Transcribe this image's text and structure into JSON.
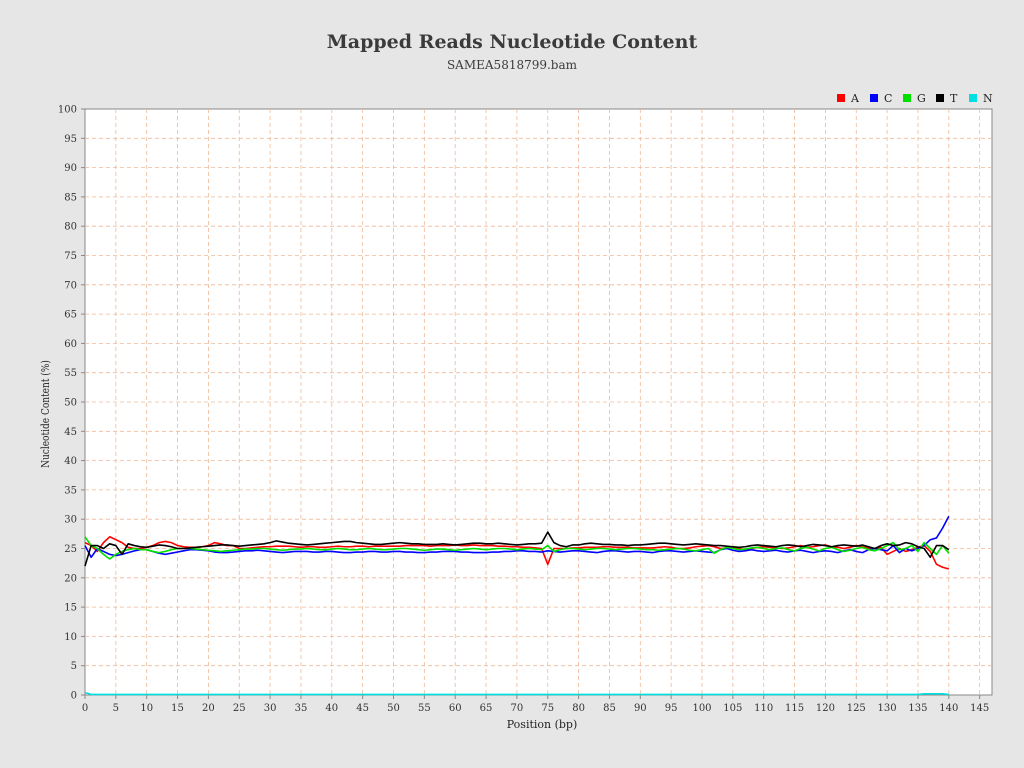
{
  "chart_data": {
    "type": "line",
    "title": "Mapped Reads Nucleotide Content",
    "subtitle": "SAMEA5818799.bam",
    "xlabel": "Position (bp)",
    "ylabel": "Nucleotide Content (%)",
    "xlim": [
      0,
      147
    ],
    "ylim": [
      0,
      100
    ],
    "xticks": [
      0,
      5,
      10,
      15,
      20,
      25,
      30,
      35,
      40,
      45,
      50,
      55,
      60,
      65,
      70,
      75,
      80,
      85,
      90,
      95,
      100,
      105,
      110,
      115,
      120,
      125,
      130,
      135,
      140,
      145
    ],
    "yticks": [
      0,
      5,
      10,
      15,
      20,
      25,
      30,
      35,
      40,
      45,
      50,
      55,
      60,
      65,
      70,
      75,
      80,
      85,
      90,
      95,
      100
    ],
    "x": [
      0,
      1,
      2,
      3,
      4,
      5,
      6,
      7,
      8,
      9,
      10,
      11,
      12,
      13,
      14,
      15,
      16,
      17,
      18,
      19,
      20,
      21,
      22,
      23,
      24,
      25,
      26,
      27,
      28,
      29,
      30,
      31,
      32,
      33,
      34,
      35,
      36,
      37,
      38,
      39,
      40,
      41,
      42,
      43,
      44,
      45,
      46,
      47,
      48,
      49,
      50,
      51,
      52,
      53,
      54,
      55,
      56,
      57,
      58,
      59,
      60,
      61,
      62,
      63,
      64,
      65,
      66,
      67,
      68,
      69,
      70,
      71,
      72,
      73,
      74,
      75,
      76,
      77,
      78,
      79,
      80,
      81,
      82,
      83,
      84,
      85,
      86,
      87,
      88,
      89,
      90,
      91,
      92,
      93,
      94,
      95,
      96,
      97,
      98,
      99,
      100,
      101,
      102,
      103,
      104,
      105,
      106,
      107,
      108,
      109,
      110,
      111,
      112,
      113,
      114,
      115,
      116,
      117,
      118,
      119,
      120,
      121,
      122,
      123,
      124,
      125,
      126,
      127,
      128,
      129,
      130,
      131,
      132,
      133,
      134,
      135,
      136,
      137,
      138,
      139,
      140
    ],
    "series": [
      {
        "name": "A",
        "color": "#ff0000",
        "values": [
          26.0,
          25.5,
          24.5,
          26.0,
          27.0,
          26.5,
          26.0,
          25.2,
          25.0,
          25.0,
          25.2,
          25.5,
          26.0,
          26.2,
          26.0,
          25.5,
          25.3,
          25.2,
          25.2,
          25.3,
          25.5,
          26.0,
          25.8,
          25.5,
          25.5,
          25.0,
          25.0,
          25.1,
          25.2,
          25.3,
          25.3,
          25.4,
          25.4,
          25.4,
          25.3,
          25.2,
          25.3,
          25.3,
          25.2,
          25.2,
          25.3,
          25.4,
          25.3,
          25.3,
          25.4,
          25.4,
          25.3,
          25.4,
          25.4,
          25.4,
          25.4,
          25.4,
          25.5,
          25.5,
          25.5,
          25.5,
          25.4,
          25.5,
          25.5,
          25.5,
          25.6,
          25.5,
          25.5,
          25.6,
          25.5,
          25.5,
          25.5,
          25.4,
          25.4,
          25.3,
          25.3,
          25.2,
          25.2,
          25.1,
          25.0,
          22.3,
          25.0,
          25.0,
          25.0,
          25.1,
          25.1,
          25.2,
          25.2,
          25.2,
          25.3,
          25.3,
          25.2,
          25.2,
          25.2,
          25.1,
          25.1,
          25.1,
          25.1,
          25.2,
          25.3,
          25.2,
          25.0,
          25.0,
          25.1,
          25.3,
          25.4,
          25.5,
          25.3,
          25.0,
          25.1,
          25.2,
          25.0,
          24.8,
          25.0,
          25.2,
          25.3,
          25.2,
          25.1,
          25.0,
          25.1,
          25.3,
          25.5,
          25.2,
          25.3,
          25.5,
          25.6,
          25.3,
          25.2,
          25.0,
          25.2,
          25.5,
          25.3,
          25.1,
          25.0,
          25.2,
          24.0,
          24.5,
          25.0,
          24.5,
          24.8,
          25.2,
          25.5,
          24.5,
          22.3,
          21.8,
          21.5
        ]
      },
      {
        "name": "C",
        "color": "#0000ff",
        "values": [
          25.5,
          23.5,
          25.0,
          24.5,
          24.0,
          23.8,
          24.0,
          24.3,
          24.6,
          24.8,
          24.8,
          24.5,
          24.2,
          24.0,
          24.2,
          24.4,
          24.6,
          24.8,
          24.8,
          24.7,
          24.6,
          24.4,
          24.3,
          24.3,
          24.4,
          24.5,
          24.6,
          24.6,
          24.7,
          24.6,
          24.5,
          24.4,
          24.3,
          24.4,
          24.5,
          24.5,
          24.5,
          24.4,
          24.4,
          24.5,
          24.5,
          24.4,
          24.3,
          24.3,
          24.4,
          24.4,
          24.5,
          24.5,
          24.4,
          24.4,
          24.5,
          24.5,
          24.4,
          24.4,
          24.3,
          24.3,
          24.4,
          24.4,
          24.5,
          24.5,
          24.5,
          24.4,
          24.4,
          24.3,
          24.3,
          24.3,
          24.4,
          24.4,
          24.5,
          24.5,
          24.6,
          24.6,
          24.5,
          24.5,
          24.4,
          24.6,
          24.5,
          24.4,
          24.5,
          24.6,
          24.6,
          24.5,
          24.4,
          24.3,
          24.5,
          24.6,
          24.6,
          24.5,
          24.4,
          24.5,
          24.5,
          24.4,
          24.3,
          24.5,
          24.6,
          24.6,
          24.5,
          24.4,
          24.5,
          24.6,
          24.5,
          24.4,
          24.3,
          24.8,
          25.0,
          24.7,
          24.5,
          24.6,
          24.8,
          24.6,
          24.5,
          24.6,
          24.7,
          24.5,
          24.4,
          24.6,
          24.7,
          24.5,
          24.3,
          24.5,
          24.6,
          24.5,
          24.3,
          24.6,
          24.8,
          24.5,
          24.3,
          24.8,
          25.0,
          24.8,
          24.6,
          25.5,
          24.3,
          25.0,
          24.6,
          25.0,
          25.5,
          26.5,
          26.8,
          28.5,
          30.5
        ]
      },
      {
        "name": "G",
        "color": "#00e000",
        "values": [
          27.0,
          25.5,
          25.0,
          24.0,
          23.2,
          24.0,
          24.5,
          24.8,
          25.0,
          24.8,
          24.8,
          24.5,
          24.3,
          24.5,
          24.8,
          25.0,
          25.0,
          25.0,
          24.9,
          24.8,
          24.7,
          24.6,
          24.5,
          24.6,
          24.7,
          24.8,
          24.9,
          24.9,
          25.0,
          25.0,
          24.9,
          24.8,
          24.7,
          24.8,
          24.9,
          24.9,
          25.0,
          24.9,
          24.8,
          24.8,
          24.9,
          25.0,
          24.9,
          24.8,
          24.8,
          24.9,
          25.0,
          24.9,
          24.8,
          24.8,
          24.9,
          25.0,
          25.0,
          24.9,
          24.8,
          24.7,
          24.8,
          24.9,
          24.9,
          24.8,
          24.7,
          24.8,
          24.9,
          25.0,
          24.9,
          24.8,
          24.9,
          25.0,
          25.0,
          24.9,
          24.8,
          24.9,
          25.0,
          24.9,
          24.8,
          25.5,
          24.5,
          24.8,
          25.0,
          25.0,
          24.9,
          24.8,
          24.9,
          25.0,
          25.0,
          24.9,
          24.8,
          24.9,
          25.0,
          25.0,
          24.9,
          24.8,
          24.8,
          24.7,
          24.8,
          24.9,
          25.0,
          24.9,
          24.7,
          24.6,
          24.8,
          25.0,
          24.2,
          24.8,
          25.2,
          25.0,
          24.8,
          24.9,
          25.1,
          25.2,
          25.0,
          24.8,
          25.0,
          25.1,
          24.8,
          24.6,
          25.0,
          25.2,
          24.9,
          24.6,
          25.0,
          25.2,
          24.8,
          24.5,
          24.7,
          25.0,
          25.2,
          24.8,
          24.6,
          25.0,
          25.5,
          26.0,
          24.8,
          25.0,
          25.5,
          24.5,
          26.0,
          25.0,
          24.0,
          25.5,
          24.2
        ]
      },
      {
        "name": "T",
        "color": "#000000",
        "values": [
          22.0,
          25.5,
          25.5,
          25.0,
          25.8,
          25.5,
          24.0,
          25.8,
          25.5,
          25.3,
          25.2,
          25.4,
          25.6,
          25.5,
          25.3,
          25.0,
          25.0,
          25.1,
          25.2,
          25.3,
          25.4,
          25.5,
          25.6,
          25.6,
          25.5,
          25.4,
          25.5,
          25.6,
          25.7,
          25.8,
          26.0,
          26.3,
          26.1,
          25.9,
          25.8,
          25.7,
          25.6,
          25.7,
          25.8,
          25.9,
          26.0,
          26.1,
          26.2,
          26.2,
          26.0,
          25.9,
          25.8,
          25.7,
          25.7,
          25.8,
          25.9,
          26.0,
          25.9,
          25.8,
          25.8,
          25.7,
          25.7,
          25.7,
          25.8,
          25.7,
          25.6,
          25.7,
          25.8,
          25.9,
          25.9,
          25.8,
          25.8,
          25.9,
          25.8,
          25.7,
          25.6,
          25.7,
          25.8,
          25.8,
          25.9,
          27.8,
          26.0,
          25.5,
          25.3,
          25.6,
          25.6,
          25.8,
          25.9,
          25.8,
          25.7,
          25.7,
          25.6,
          25.6,
          25.5,
          25.6,
          25.6,
          25.7,
          25.8,
          25.9,
          25.9,
          25.8,
          25.7,
          25.6,
          25.7,
          25.8,
          25.7,
          25.6,
          25.5,
          25.5,
          25.4,
          25.3,
          25.2,
          25.3,
          25.5,
          25.6,
          25.5,
          25.4,
          25.3,
          25.5,
          25.6,
          25.5,
          25.3,
          25.5,
          25.7,
          25.6,
          25.5,
          25.3,
          25.5,
          25.6,
          25.5,
          25.4,
          25.6,
          25.3,
          25.0,
          25.5,
          25.8,
          25.5,
          25.6,
          26.0,
          25.8,
          25.3,
          25.0,
          23.5,
          25.5,
          25.5,
          24.8
        ]
      },
      {
        "name": "N",
        "color": "#00e0e0",
        "values": [
          0.4,
          0.1,
          0.1,
          0.1,
          0.1,
          0.1,
          0.1,
          0.1,
          0.1,
          0.1,
          0.1,
          0.1,
          0.1,
          0.1,
          0.1,
          0.1,
          0.1,
          0.1,
          0.1,
          0.1,
          0.1,
          0.1,
          0.1,
          0.1,
          0.1,
          0.1,
          0.1,
          0.1,
          0.1,
          0.1,
          0.1,
          0.1,
          0.1,
          0.1,
          0.1,
          0.1,
          0.1,
          0.1,
          0.1,
          0.1,
          0.1,
          0.1,
          0.1,
          0.1,
          0.1,
          0.1,
          0.1,
          0.1,
          0.1,
          0.1,
          0.1,
          0.1,
          0.1,
          0.1,
          0.1,
          0.1,
          0.1,
          0.1,
          0.1,
          0.1,
          0.1,
          0.1,
          0.1,
          0.1,
          0.1,
          0.1,
          0.1,
          0.1,
          0.1,
          0.1,
          0.1,
          0.1,
          0.1,
          0.1,
          0.1,
          0.1,
          0.1,
          0.1,
          0.1,
          0.1,
          0.1,
          0.1,
          0.1,
          0.1,
          0.1,
          0.1,
          0.1,
          0.1,
          0.1,
          0.1,
          0.1,
          0.1,
          0.1,
          0.1,
          0.1,
          0.1,
          0.1,
          0.1,
          0.1,
          0.1,
          0.1,
          0.1,
          0.1,
          0.1,
          0.1,
          0.1,
          0.1,
          0.1,
          0.1,
          0.1,
          0.1,
          0.1,
          0.1,
          0.1,
          0.1,
          0.1,
          0.1,
          0.1,
          0.1,
          0.1,
          0.1,
          0.1,
          0.1,
          0.1,
          0.1,
          0.1,
          0.1,
          0.1,
          0.1,
          0.1,
          0.1,
          0.1,
          0.1,
          0.1,
          0.1,
          0.1,
          0.2,
          0.2,
          0.2,
          0.2,
          0.1
        ]
      }
    ],
    "legend": {
      "position": "top-right"
    }
  }
}
